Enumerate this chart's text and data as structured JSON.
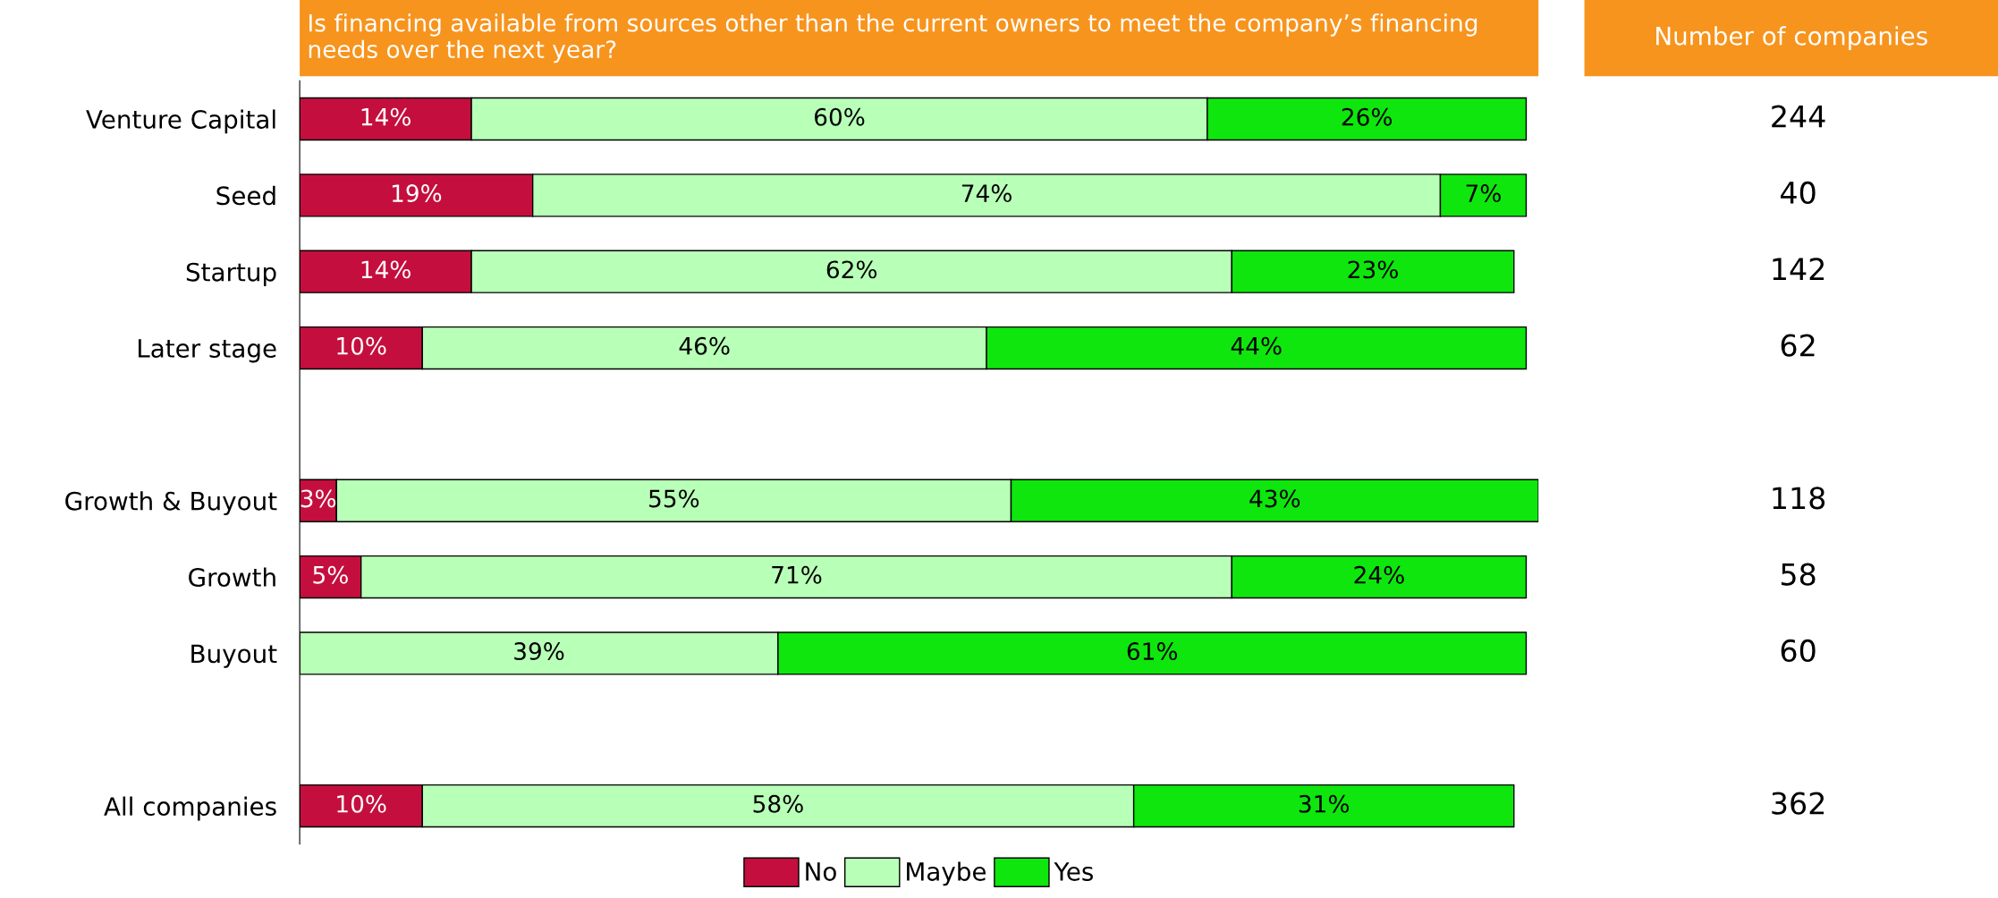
{
  "chart_data": {
    "type": "bar",
    "orientation": "horizontal",
    "stacked": true,
    "title": "Is financing available from sources other than the current owners to meet the company’s financing needs over the next year?",
    "categories": [
      "Venture Capital",
      "Seed",
      "Startup",
      "Later stage",
      null,
      "Growth & Buyout",
      "Growth",
      "Buyout",
      null,
      "All companies"
    ],
    "series": [
      {
        "name": "No",
        "color": "#c40f3e",
        "values": [
          14,
          19,
          14,
          10,
          null,
          3,
          5,
          0,
          null,
          10
        ],
        "value_labels": [
          "14%",
          "19%",
          "14%",
          "10%",
          null,
          "3%",
          "5%",
          null,
          null,
          "10%"
        ]
      },
      {
        "name": "Maybe",
        "color": "#b8ffb8",
        "values": [
          60,
          74,
          62,
          46,
          null,
          55,
          71,
          39,
          null,
          58
        ],
        "value_labels": [
          "60%",
          "74%",
          "62%",
          "46%",
          null,
          "55%",
          "71%",
          "39%",
          null,
          "58%"
        ]
      },
      {
        "name": "Yes",
        "color": "#0ee60e",
        "values": [
          26,
          7,
          23,
          44,
          null,
          43,
          24,
          61,
          null,
          31
        ],
        "value_labels": [
          "26%",
          "7%",
          "23%",
          "44%",
          null,
          "43%",
          "24%",
          "61%",
          null,
          "31%"
        ]
      }
    ],
    "annotations": [
      "Number of companies",
      "244",
      "40",
      "142",
      "62",
      "118",
      "58",
      "60",
      "362"
    ],
    "legend": "bottom",
    "grid": false
  }
}
